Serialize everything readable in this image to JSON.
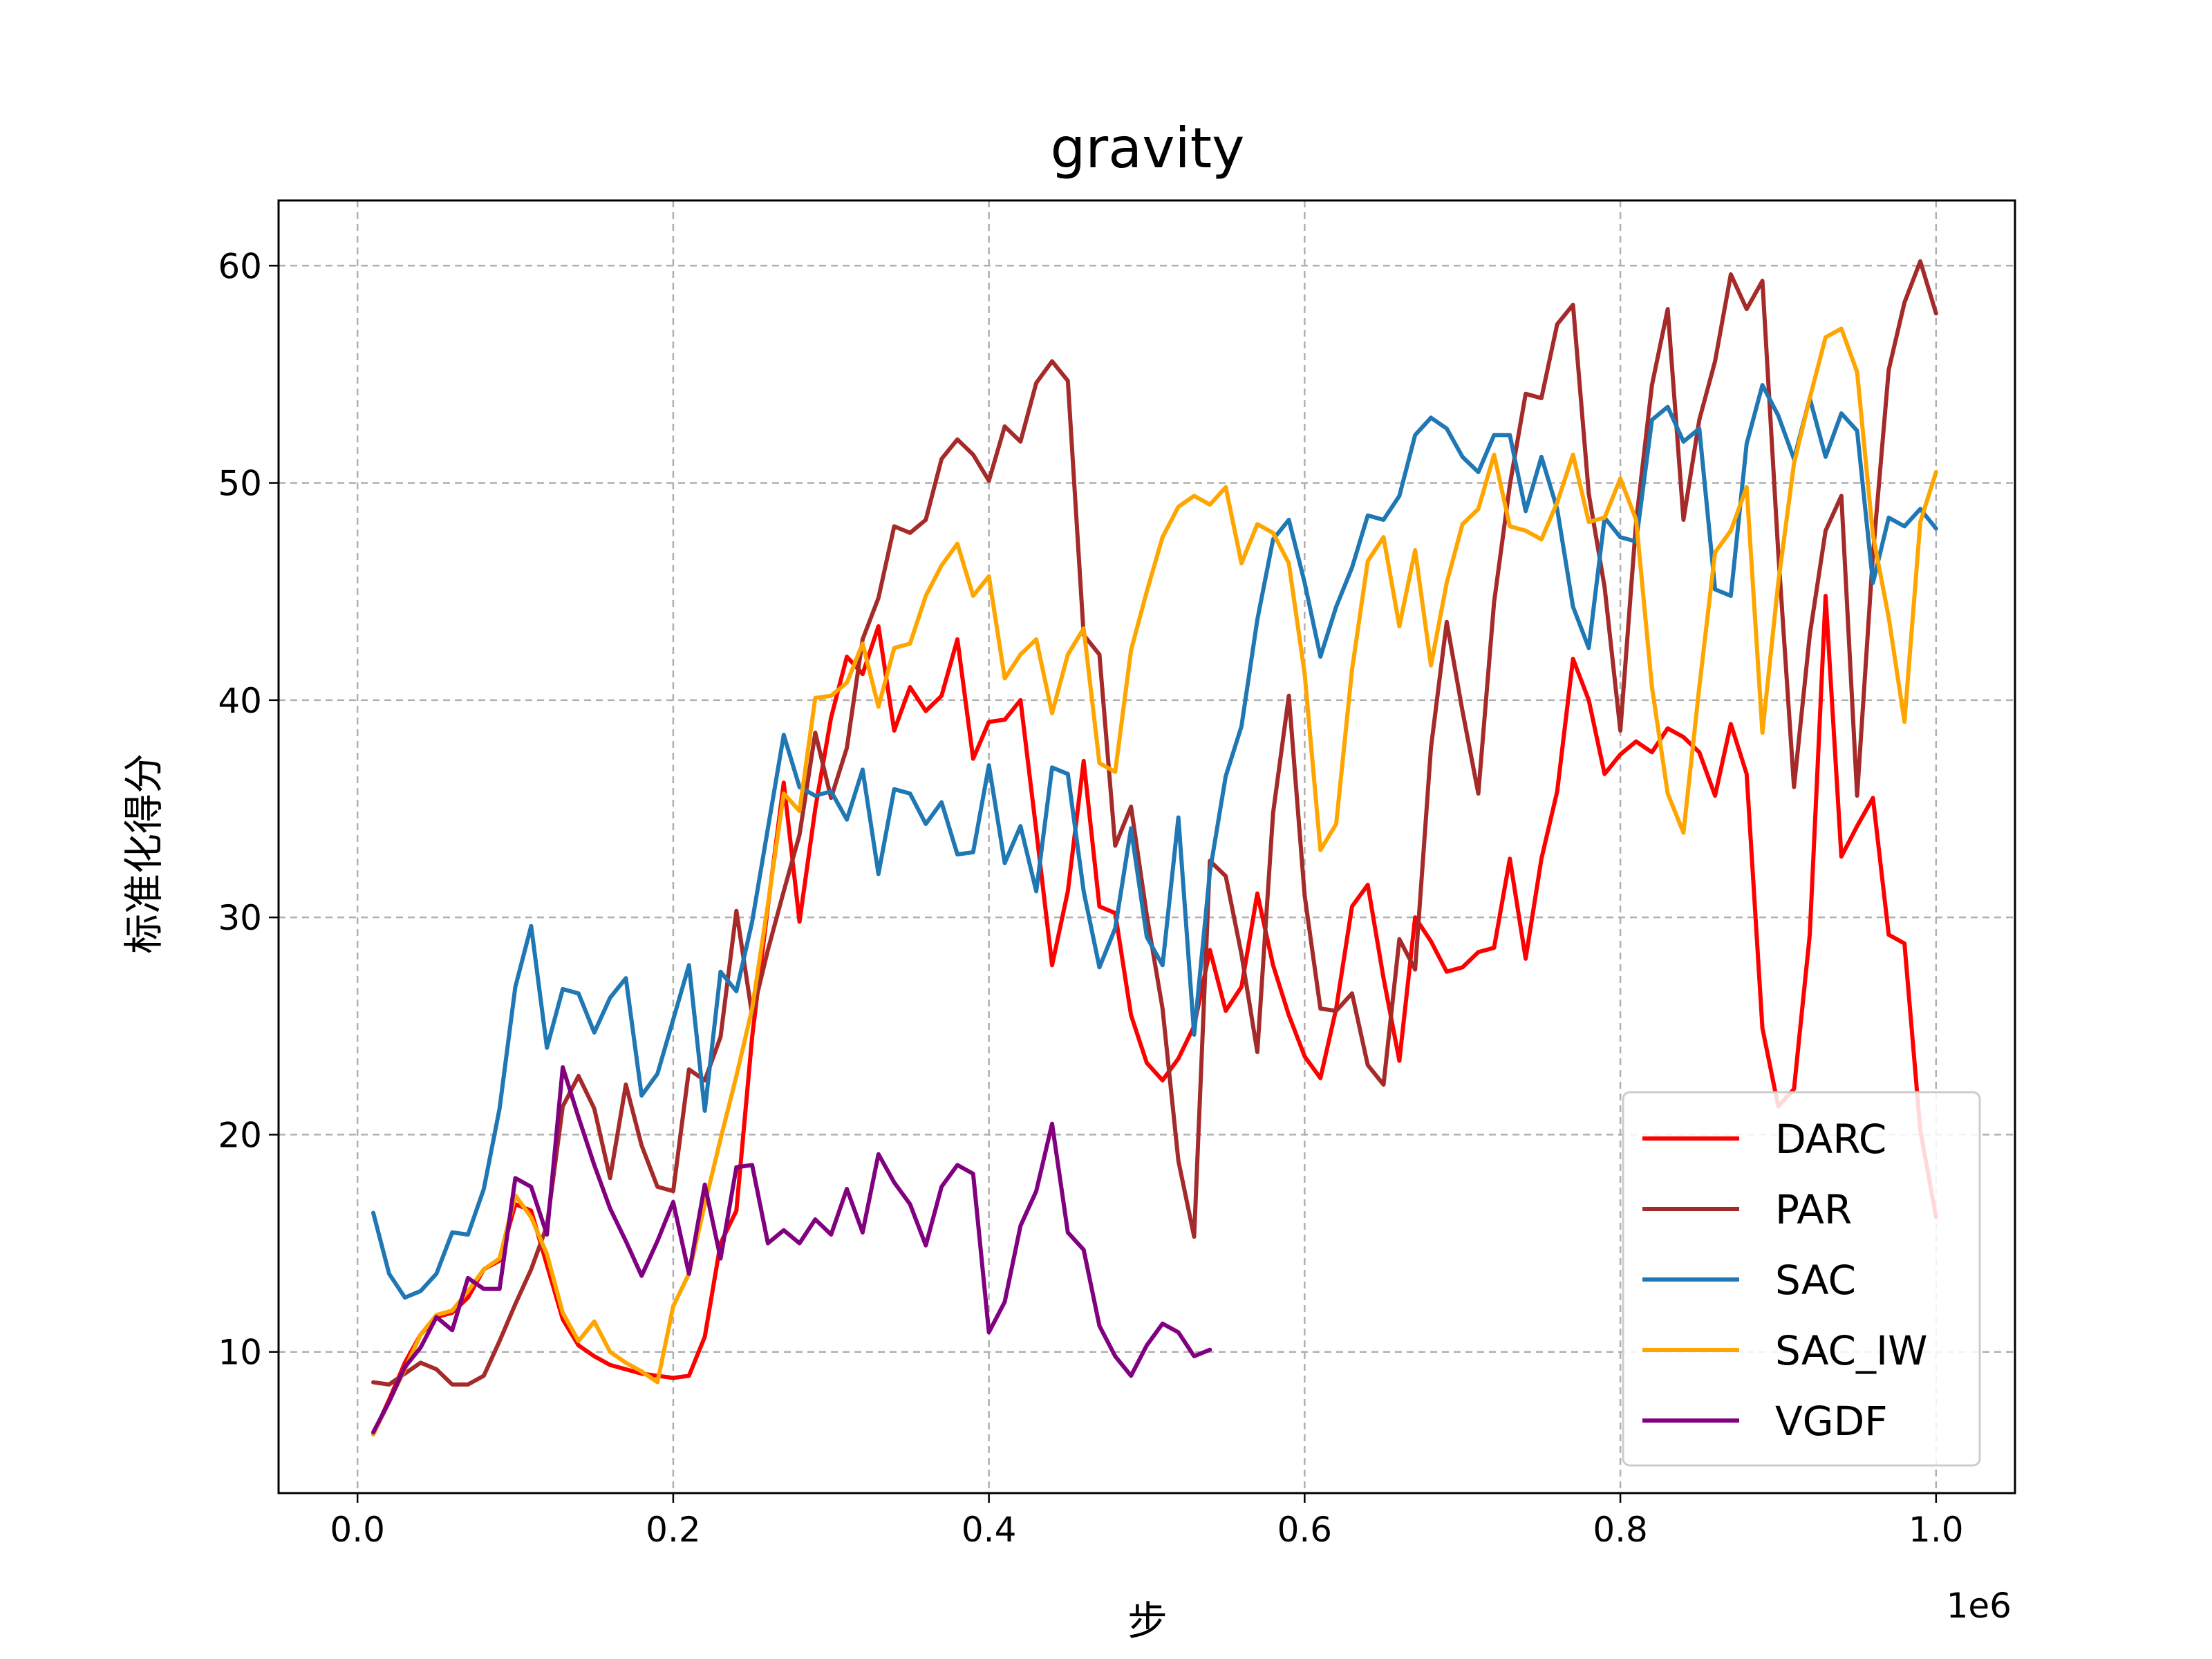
{
  "chart_data": {
    "type": "line",
    "title": "gravity",
    "xlabel": "步",
    "ylabel": "标准化得分",
    "x_offset_label": "1e6",
    "xlim": [
      -0.05,
      1.05
    ],
    "ylim": [
      3.5,
      63.0
    ],
    "xticks": [
      0.0,
      0.2,
      0.4,
      0.6,
      0.8,
      1.0
    ],
    "xtick_labels": [
      "0.0",
      "0.2",
      "0.4",
      "0.6",
      "0.8",
      "1.0"
    ],
    "yticks": [
      10,
      20,
      30,
      40,
      50,
      60
    ],
    "ytick_labels": [
      "10",
      "20",
      "30",
      "40",
      "50",
      "60"
    ],
    "grid": true,
    "legend_position": "lower right",
    "series": [
      {
        "name": "DARC",
        "color": "#ff0000",
        "x": [
          0.01,
          0.02,
          0.03,
          0.04,
          0.05,
          0.06,
          0.07,
          0.08,
          0.09,
          0.1,
          0.11,
          0.12,
          0.13,
          0.14,
          0.15,
          0.16,
          0.17,
          0.18,
          0.19,
          0.2,
          0.21,
          0.22,
          0.23,
          0.24,
          0.25,
          0.26,
          0.27,
          0.28,
          0.29,
          0.3,
          0.31,
          0.32,
          0.33,
          0.34,
          0.35,
          0.36,
          0.37,
          0.38,
          0.39,
          0.4,
          0.41,
          0.42,
          0.43,
          0.44,
          0.45,
          0.46,
          0.47,
          0.48,
          0.49,
          0.5,
          0.51,
          0.52,
          0.53,
          0.54,
          0.55,
          0.56,
          0.57,
          0.58,
          0.59,
          0.6,
          0.61,
          0.62,
          0.63,
          0.64,
          0.65,
          0.66,
          0.67,
          0.68,
          0.69,
          0.7,
          0.71,
          0.72,
          0.73,
          0.74,
          0.75,
          0.76,
          0.77,
          0.78,
          0.79,
          0.8,
          0.81,
          0.82,
          0.83,
          0.84,
          0.85,
          0.86,
          0.87,
          0.88,
          0.89,
          0.9,
          0.91,
          0.92,
          0.93,
          0.94,
          0.95,
          0.96,
          0.97,
          0.98,
          0.99,
          1.0
        ],
        "y": [
          6.2,
          7.8,
          9.5,
          10.8,
          11.6,
          11.8,
          12.5,
          13.8,
          14.2,
          16.8,
          16.5,
          14.0,
          11.5,
          10.3,
          9.8,
          9.4,
          9.2,
          9.0,
          8.9,
          8.8,
          8.9,
          10.7,
          15.0,
          16.5,
          24.5,
          30.5,
          36.2,
          29.8,
          35.0,
          39.2,
          42.0,
          41.2,
          43.4,
          38.6,
          40.6,
          39.5,
          40.2,
          42.8,
          37.3,
          39.0,
          39.1,
          40.0,
          34.0,
          27.8,
          31.2,
          37.2,
          30.5,
          30.2,
          25.5,
          23.3,
          22.5,
          23.5,
          25.0,
          28.5,
          25.7,
          26.8,
          31.1,
          27.8,
          25.5,
          23.6,
          22.6,
          25.8,
          30.5,
          31.5,
          27.2,
          23.4,
          30.0,
          28.9,
          27.5,
          27.7,
          28.4,
          28.6,
          32.7,
          28.1,
          32.7,
          35.8,
          41.9,
          40.0,
          36.6,
          37.5,
          38.1,
          37.6,
          38.7,
          38.3,
          37.6,
          35.6,
          38.9,
          36.6,
          24.9,
          21.3,
          22.1,
          29.2,
          44.8,
          32.8,
          34.2,
          35.5,
          29.2,
          28.8,
          20.2,
          16.2
        ]
      },
      {
        "name": "PAR",
        "color": "#a52a2a",
        "x": [
          0.01,
          0.02,
          0.03,
          0.04,
          0.05,
          0.06,
          0.07,
          0.08,
          0.09,
          0.1,
          0.11,
          0.12,
          0.13,
          0.14,
          0.15,
          0.16,
          0.17,
          0.18,
          0.19,
          0.2,
          0.21,
          0.22,
          0.23,
          0.24,
          0.25,
          0.26,
          0.27,
          0.28,
          0.29,
          0.3,
          0.31,
          0.32,
          0.33,
          0.34,
          0.35,
          0.36,
          0.37,
          0.38,
          0.39,
          0.4,
          0.41,
          0.42,
          0.43,
          0.44,
          0.45,
          0.46,
          0.47,
          0.48,
          0.49,
          0.5,
          0.51,
          0.52,
          0.53,
          0.54,
          0.55,
          0.56,
          0.57,
          0.58,
          0.59,
          0.6,
          0.61,
          0.62,
          0.63,
          0.64,
          0.65,
          0.66,
          0.67,
          0.68,
          0.69,
          0.7,
          0.71,
          0.72,
          0.73,
          0.74,
          0.75,
          0.76,
          0.77,
          0.78,
          0.79,
          0.8,
          0.81,
          0.82,
          0.83,
          0.84,
          0.85,
          0.86,
          0.87,
          0.88,
          0.89,
          0.9,
          0.91,
          0.92,
          0.93,
          0.94,
          0.95,
          0.96,
          0.97,
          0.98,
          0.99,
          1.0
        ],
        "y": [
          8.6,
          8.5,
          9.0,
          9.5,
          9.2,
          8.5,
          8.5,
          8.9,
          10.5,
          12.2,
          13.8,
          15.8,
          21.3,
          22.7,
          21.2,
          18.0,
          22.3,
          19.5,
          17.6,
          17.4,
          23.0,
          22.5,
          24.5,
          30.3,
          25.5,
          28.5,
          31.2,
          33.8,
          38.5,
          35.5,
          37.8,
          42.8,
          44.7,
          48.0,
          47.7,
          48.3,
          51.1,
          52.0,
          51.3,
          50.1,
          52.6,
          51.9,
          54.6,
          55.6,
          54.7,
          43.0,
          42.1,
          33.3,
          35.1,
          30.1,
          25.8,
          18.8,
          15.3,
          32.6,
          31.9,
          28.3,
          23.8,
          34.8,
          40.2,
          31.0,
          25.8,
          25.7,
          26.5,
          23.2,
          22.3,
          29.0,
          27.6,
          37.8,
          43.6,
          39.5,
          35.7,
          44.5,
          49.9,
          54.1,
          53.9,
          57.3,
          58.2,
          49.5,
          45.2,
          38.6,
          48.2,
          54.5,
          58.0,
          48.3,
          52.9,
          55.6,
          59.6,
          58.0,
          59.3,
          46.8,
          36.0,
          43.0,
          47.8,
          49.4,
          35.6,
          46.7,
          55.2,
          58.3,
          60.2,
          57.8
        ]
      },
      {
        "name": "SAC",
        "color": "#1f77b4",
        "x": [
          0.01,
          0.02,
          0.03,
          0.04,
          0.05,
          0.06,
          0.07,
          0.08,
          0.09,
          0.1,
          0.11,
          0.12,
          0.13,
          0.14,
          0.15,
          0.16,
          0.17,
          0.18,
          0.19,
          0.2,
          0.21,
          0.22,
          0.23,
          0.24,
          0.25,
          0.26,
          0.27,
          0.28,
          0.29,
          0.3,
          0.31,
          0.32,
          0.33,
          0.34,
          0.35,
          0.36,
          0.37,
          0.38,
          0.39,
          0.4,
          0.41,
          0.42,
          0.43,
          0.44,
          0.45,
          0.46,
          0.47,
          0.48,
          0.49,
          0.5,
          0.51,
          0.52,
          0.53,
          0.54,
          0.55,
          0.56,
          0.57,
          0.58,
          0.59,
          0.6,
          0.61,
          0.62,
          0.63,
          0.64,
          0.65,
          0.66,
          0.67,
          0.68,
          0.69,
          0.7,
          0.71,
          0.72,
          0.73,
          0.74,
          0.75,
          0.76,
          0.77,
          0.78,
          0.79,
          0.8,
          0.81,
          0.82,
          0.83,
          0.84,
          0.85,
          0.86,
          0.87,
          0.88,
          0.89,
          0.9,
          0.91,
          0.92,
          0.93,
          0.94,
          0.95,
          0.96,
          0.97,
          0.98,
          0.99,
          1.0
        ],
        "y": [
          16.4,
          13.6,
          12.5,
          12.8,
          13.6,
          15.5,
          15.4,
          17.5,
          21.2,
          26.8,
          29.6,
          24.0,
          26.7,
          26.5,
          24.7,
          26.3,
          27.2,
          21.8,
          22.8,
          25.3,
          27.8,
          21.1,
          27.5,
          26.6,
          29.8,
          34.1,
          38.4,
          36.0,
          35.6,
          35.8,
          34.5,
          36.8,
          32.0,
          35.9,
          35.7,
          34.3,
          35.3,
          32.9,
          33.0,
          37.0,
          32.5,
          34.2,
          31.2,
          36.9,
          36.6,
          31.2,
          27.7,
          29.5,
          34.1,
          29.1,
          27.8,
          34.6,
          24.6,
          32.1,
          36.5,
          38.8,
          43.7,
          47.4,
          48.3,
          45.4,
          42.0,
          44.3,
          46.1,
          48.5,
          48.3,
          49.4,
          52.2,
          53.0,
          52.5,
          51.2,
          50.5,
          52.2,
          52.2,
          48.7,
          51.2,
          48.8,
          44.3,
          42.4,
          48.4,
          47.5,
          47.3,
          52.9,
          53.5,
          51.9,
          52.5,
          45.1,
          44.8,
          51.8,
          54.5,
          53.1,
          51.1,
          53.9,
          51.2,
          53.2,
          52.4,
          45.4,
          48.4,
          48.0,
          48.8,
          47.9
        ]
      },
      {
        "name": "SAC_IW",
        "color": "#ffa500",
        "x": [
          0.01,
          0.02,
          0.03,
          0.04,
          0.05,
          0.06,
          0.07,
          0.08,
          0.09,
          0.1,
          0.11,
          0.12,
          0.13,
          0.14,
          0.15,
          0.16,
          0.17,
          0.18,
          0.19,
          0.2,
          0.21,
          0.22,
          0.23,
          0.24,
          0.25,
          0.26,
          0.27,
          0.28,
          0.29,
          0.3,
          0.31,
          0.32,
          0.33,
          0.34,
          0.35,
          0.36,
          0.37,
          0.38,
          0.39,
          0.4,
          0.41,
          0.42,
          0.43,
          0.44,
          0.45,
          0.46,
          0.47,
          0.48,
          0.49,
          0.5,
          0.51,
          0.52,
          0.53,
          0.54,
          0.55,
          0.56,
          0.57,
          0.58,
          0.59,
          0.6,
          0.61,
          0.62,
          0.63,
          0.64,
          0.65,
          0.66,
          0.67,
          0.68,
          0.69,
          0.7,
          0.71,
          0.72,
          0.73,
          0.74,
          0.75,
          0.76,
          0.77,
          0.78,
          0.79,
          0.8,
          0.81,
          0.82,
          0.83,
          0.84,
          0.85,
          0.86,
          0.87,
          0.88,
          0.89,
          0.9,
          0.91,
          0.92,
          0.93,
          0.94,
          0.95,
          0.96,
          0.97,
          0.98,
          0.99,
          1.0
        ],
        "y": [
          6.2,
          7.7,
          9.2,
          10.8,
          11.7,
          11.9,
          12.8,
          13.8,
          14.3,
          17.2,
          16.2,
          14.5,
          11.8,
          10.5,
          11.4,
          10.0,
          9.5,
          9.1,
          8.6,
          12.1,
          13.6,
          16.8,
          19.8,
          22.7,
          25.8,
          30.6,
          35.7,
          34.9,
          40.1,
          40.2,
          40.8,
          42.6,
          39.7,
          42.4,
          42.6,
          44.8,
          46.2,
          47.2,
          44.8,
          45.7,
          41.0,
          42.1,
          42.8,
          39.4,
          42.1,
          43.3,
          37.1,
          36.7,
          42.3,
          45.0,
          47.5,
          48.9,
          49.4,
          49.0,
          49.8,
          46.3,
          48.1,
          47.7,
          46.3,
          41.2,
          33.1,
          34.3,
          41.4,
          46.4,
          47.5,
          43.4,
          46.9,
          41.6,
          45.4,
          48.1,
          48.8,
          51.3,
          48.0,
          47.8,
          47.4,
          49.1,
          51.3,
          48.2,
          48.4,
          50.2,
          48.3,
          40.6,
          35.7,
          33.9,
          40.6,
          46.8,
          47.8,
          49.8,
          38.5,
          45.4,
          50.9,
          53.9,
          56.7,
          57.1,
          55.1,
          47.6,
          43.8,
          39.0,
          48.2,
          50.5
        ]
      },
      {
        "name": "VGDF",
        "color": "#800080",
        "x": [
          0.01,
          0.02,
          0.03,
          0.04,
          0.05,
          0.06,
          0.07,
          0.08,
          0.09,
          0.1,
          0.11,
          0.12,
          0.13,
          0.14,
          0.15,
          0.16,
          0.17,
          0.18,
          0.19,
          0.2,
          0.21,
          0.22,
          0.23,
          0.24,
          0.25,
          0.26,
          0.27,
          0.28,
          0.29,
          0.3,
          0.31,
          0.32,
          0.33,
          0.34,
          0.35,
          0.36,
          0.37,
          0.38,
          0.39,
          0.4,
          0.41,
          0.42,
          0.43,
          0.44,
          0.45,
          0.46,
          0.47,
          0.48,
          0.49,
          0.5,
          0.51,
          0.52,
          0.53,
          0.54
        ],
        "y": [
          6.3,
          7.7,
          9.3,
          10.2,
          11.6,
          11.0,
          13.4,
          12.9,
          12.9,
          18.0,
          17.6,
          15.4,
          23.1,
          20.8,
          18.6,
          16.6,
          15.1,
          13.5,
          15.1,
          16.9,
          13.6,
          17.7,
          14.3,
          18.5,
          18.6,
          15.0,
          15.6,
          15.0,
          16.1,
          15.4,
          17.5,
          15.5,
          19.1,
          17.8,
          16.8,
          14.9,
          17.6,
          18.6,
          18.2,
          10.9,
          12.3,
          15.8,
          17.4,
          20.5,
          15.5,
          14.7,
          11.2,
          9.8,
          8.9,
          10.3,
          11.3,
          10.9,
          9.8,
          10.1
        ]
      }
    ]
  }
}
